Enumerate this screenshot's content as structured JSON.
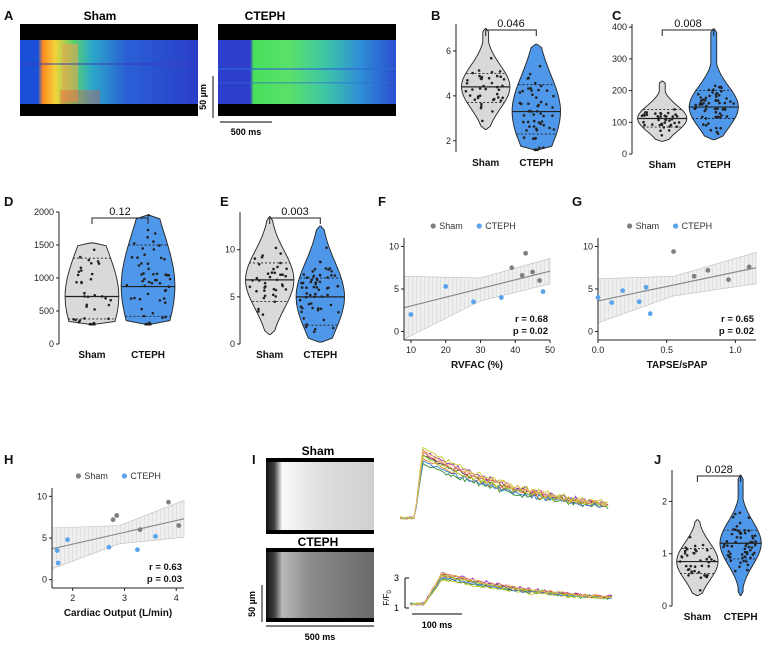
{
  "colors": {
    "sham": "#d9d9d9",
    "cteph": "#4f97e8",
    "sham_dot": "#808080",
    "cteph_dot": "#5aa4ec",
    "ci": "#e3e3e3",
    "fit": "#8a8a8a"
  },
  "panel_a": {
    "label": "A",
    "sham_title": "Sham",
    "cteph_title": "CTEPH",
    "scale_y": "50 µm",
    "scale_x": "500 ms"
  },
  "panel_i": {
    "label": "I",
    "sham_title": "Sham",
    "cteph_title": "CTEPH",
    "scale_y": "50 µm",
    "scale_x": "500 ms",
    "trace_scale_x": "100 ms",
    "trace_ylabel": "F/F",
    "trace_ylabel_sub": "0",
    "trace_tick_top": "3",
    "trace_tick_bottom": "1"
  },
  "chart_data": [
    {
      "id": "B",
      "type": "violin",
      "groups": [
        "Sham",
        "CTEPH"
      ],
      "ylim": [
        1.5,
        7.2
      ],
      "yticks": [
        "2",
        "4",
        "6"
      ],
      "median": [
        4.4,
        3.3
      ],
      "q1": [
        3.7,
        2.3
      ],
      "q3": [
        5.0,
        4.5
      ],
      "min": [
        2.5,
        1.6
      ],
      "max": [
        7.0,
        6.3
      ],
      "p_value": "0.046"
    },
    {
      "id": "C",
      "type": "violin",
      "groups": [
        "Sham",
        "CTEPH"
      ],
      "ylim": [
        0,
        410
      ],
      "yticks": [
        "0",
        "100",
        "200",
        "300",
        "400"
      ],
      "median": [
        112,
        148
      ],
      "q1": [
        85,
        112
      ],
      "q3": [
        140,
        200
      ],
      "min": [
        40,
        45
      ],
      "max": [
        230,
        395
      ],
      "p_value": "0.008"
    },
    {
      "id": "D",
      "type": "violin",
      "groups": [
        "Sham",
        "CTEPH"
      ],
      "ylim": [
        0,
        2000
      ],
      "yticks": [
        "0",
        "500",
        "1000",
        "1500",
        "2000"
      ],
      "median": [
        720,
        870
      ],
      "q1": [
        380,
        420
      ],
      "q3": [
        1300,
        1500
      ],
      "min": [
        300,
        300
      ],
      "max": [
        1530,
        1950
      ],
      "p_value": "0.12"
    },
    {
      "id": "E",
      "type": "violin",
      "groups": [
        "Sham",
        "CTEPH"
      ],
      "ylim": [
        0,
        14
      ],
      "yticks": [
        "0",
        "5",
        "10"
      ],
      "median": [
        6.8,
        5.0
      ],
      "q1": [
        4.5,
        2.0
      ],
      "q3": [
        8.6,
        7.0
      ],
      "min": [
        1.0,
        0.2
      ],
      "max": [
        13.5,
        12.5
      ],
      "p_value": "0.003"
    },
    {
      "id": "J",
      "type": "violin",
      "groups": [
        "Sham",
        "CTEPH"
      ],
      "ylim": [
        0,
        2.6
      ],
      "yticks": [
        "0",
        "1",
        "2"
      ],
      "median": [
        0.85,
        1.2
      ],
      "q1": [
        0.62,
        0.9
      ],
      "q3": [
        1.1,
        1.45
      ],
      "min": [
        0.2,
        0.2
      ],
      "max": [
        1.65,
        2.5
      ],
      "p_value": "0.028"
    },
    {
      "id": "F",
      "type": "scatter",
      "xlabel": "RVFAC (%)",
      "xlim": [
        8,
        50
      ],
      "ylim": [
        -1,
        11
      ],
      "xticks": [
        "10",
        "20",
        "30",
        "40",
        "50"
      ],
      "yticks": [
        "0",
        "5",
        "10"
      ],
      "legend": [
        "Sham",
        "CTEPH"
      ],
      "r": "r = 0.68",
      "p": "p = 0.02",
      "sham": [
        [
          39,
          7.5
        ],
        [
          43,
          9.2
        ],
        [
          42,
          6.6
        ],
        [
          45,
          7
        ],
        [
          47,
          6
        ]
      ],
      "cteph": [
        [
          10,
          2
        ],
        [
          20,
          5.3
        ],
        [
          28,
          3.5
        ],
        [
          36,
          4
        ],
        [
          48,
          4.7
        ]
      ],
      "fit": [
        [
          8,
          2.8
        ],
        [
          50,
          7.1
        ]
      ],
      "ci_upper": [
        [
          8,
          6.5
        ],
        [
          30,
          6.3
        ],
        [
          50,
          8.6
        ]
      ],
      "ci_lower": [
        [
          8,
          -0.9
        ],
        [
          30,
          3.6
        ],
        [
          50,
          5.6
        ]
      ]
    },
    {
      "id": "G",
      "type": "scatter",
      "xlabel": "TAPSE/sPAP",
      "xlim": [
        0,
        1.15
      ],
      "ylim": [
        -1,
        11
      ],
      "xticks": [
        "0.0",
        "0.5",
        "1.0"
      ],
      "yticks": [
        "0",
        "5",
        "10"
      ],
      "legend": [
        "Sham",
        "CTEPH"
      ],
      "r": "r = 0.65",
      "p": "p = 0.02",
      "sham": [
        [
          0.55,
          9.4
        ],
        [
          0.7,
          6.5
        ],
        [
          0.8,
          7.2
        ],
        [
          0.95,
          6.1
        ],
        [
          1.1,
          7.6
        ]
      ],
      "cteph": [
        [
          0,
          4
        ],
        [
          0.1,
          3.4
        ],
        [
          0.18,
          4.8
        ],
        [
          0.3,
          3.5
        ],
        [
          0.35,
          5.2
        ],
        [
          0.38,
          2.1
        ]
      ],
      "fit": [
        [
          0,
          3.6
        ],
        [
          1.15,
          7.5
        ]
      ],
      "ci_upper": [
        [
          0,
          6.2
        ],
        [
          0.55,
          6.5
        ],
        [
          1.15,
          9.3
        ]
      ],
      "ci_lower": [
        [
          0,
          1.0
        ],
        [
          0.55,
          4.2
        ],
        [
          1.15,
          5.6
        ]
      ]
    },
    {
      "id": "H",
      "type": "scatter",
      "xlabel": "Cardiac Output (L/min)",
      "xlim": [
        1.6,
        4.15
      ],
      "ylim": [
        -1,
        11
      ],
      "xticks": [
        "2",
        "3",
        "4"
      ],
      "yticks": [
        "0",
        "5",
        "10"
      ],
      "legend": [
        "Sham",
        "CTEPH"
      ],
      "r": "r = 0.63",
      "p": "p = 0.03",
      "sham": [
        [
          2.78,
          7.2
        ],
        [
          2.85,
          7.7
        ],
        [
          3.3,
          6.0
        ],
        [
          3.85,
          9.3
        ],
        [
          4.05,
          6.5
        ]
      ],
      "cteph": [
        [
          1.7,
          3.5
        ],
        [
          1.72,
          2.0
        ],
        [
          1.9,
          4.8
        ],
        [
          2.7,
          3.9
        ],
        [
          3.25,
          3.6
        ],
        [
          3.6,
          5.2
        ]
      ],
      "fit": [
        [
          1.6,
          3.7
        ],
        [
          4.15,
          7.3
        ]
      ],
      "ci_upper": [
        [
          1.6,
          6.2
        ],
        [
          2.9,
          6.5
        ],
        [
          4.15,
          9.5
        ]
      ],
      "ci_lower": [
        [
          1.6,
          1.3
        ],
        [
          2.9,
          4.3
        ],
        [
          4.15,
          5.1
        ]
      ]
    }
  ]
}
